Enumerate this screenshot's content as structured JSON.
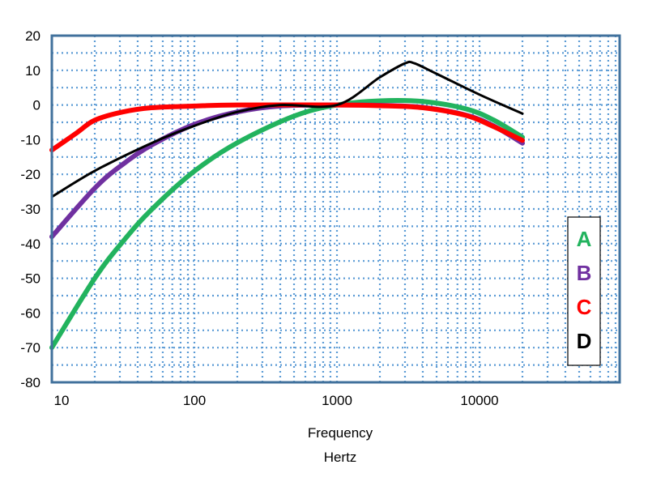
{
  "chart_data": {
    "type": "line",
    "xscale": "log",
    "xlim": [
      10,
      90000
    ],
    "ylim": [
      -80,
      20
    ],
    "xlabel_line1": "Frequency",
    "xlabel_line2": "Hertz",
    "x_ticks": [
      {
        "value": 10,
        "label": "10"
      },
      {
        "value": 100,
        "label": "100"
      },
      {
        "value": 1000,
        "label": "1000"
      },
      {
        "value": 10000,
        "label": "10000"
      }
    ],
    "y_ticks": [
      {
        "value": 20,
        "label": "20"
      },
      {
        "value": 10,
        "label": "10"
      },
      {
        "value": 0,
        "label": "0"
      },
      {
        "value": -10,
        "label": "-10"
      },
      {
        "value": -20,
        "label": "-20"
      },
      {
        "value": -30,
        "label": "-30"
      },
      {
        "value": -40,
        "label": "-40"
      },
      {
        "value": -50,
        "label": "-50"
      },
      {
        "value": -60,
        "label": "-60"
      },
      {
        "value": -70,
        "label": "-70"
      },
      {
        "value": -80,
        "label": "-80"
      }
    ],
    "grid": true,
    "legend_position": "right-middle",
    "series": [
      {
        "name": "A",
        "color": "#22b35e",
        "width": "thick",
        "points": [
          [
            10,
            -70
          ],
          [
            20,
            -50
          ],
          [
            31.5,
            -39.4
          ],
          [
            50,
            -30.2
          ],
          [
            100,
            -19.1
          ],
          [
            200,
            -10.9
          ],
          [
            500,
            -3.2
          ],
          [
            1000,
            0
          ],
          [
            2000,
            1.2
          ],
          [
            4000,
            1.0
          ],
          [
            8000,
            -1.1
          ],
          [
            12500,
            -4.3
          ],
          [
            20000,
            -9.3
          ]
        ]
      },
      {
        "name": "B",
        "color": "#7030a0",
        "width": "thick",
        "points": [
          [
            10,
            -38
          ],
          [
            20,
            -24
          ],
          [
            31.5,
            -17.1
          ],
          [
            50,
            -11.6
          ],
          [
            100,
            -5.6
          ],
          [
            200,
            -2.0
          ],
          [
            400,
            -0.3
          ],
          [
            1000,
            0
          ],
          [
            2000,
            -0.1
          ],
          [
            4000,
            -0.7
          ],
          [
            8000,
            -2.9
          ],
          [
            12500,
            -6
          ],
          [
            20000,
            -11
          ]
        ]
      },
      {
        "name": "C",
        "color": "#ff0000",
        "width": "thick",
        "points": [
          [
            10,
            -13
          ],
          [
            15,
            -8
          ],
          [
            20,
            -4.4
          ],
          [
            31.5,
            -2
          ],
          [
            50,
            -0.8
          ],
          [
            100,
            -0.3
          ],
          [
            200,
            0
          ],
          [
            1000,
            0
          ],
          [
            2000,
            -0.2
          ],
          [
            4000,
            -0.8
          ],
          [
            8000,
            -3
          ],
          [
            12500,
            -6.2
          ],
          [
            20000,
            -10.2
          ]
        ]
      },
      {
        "name": "D",
        "color": "#000000",
        "width": "thin",
        "points": [
          [
            10,
            -26.5
          ],
          [
            20,
            -19
          ],
          [
            50,
            -11
          ],
          [
            100,
            -6
          ],
          [
            200,
            -2
          ],
          [
            400,
            0
          ],
          [
            1000,
            0
          ],
          [
            2000,
            8
          ],
          [
            3000,
            12
          ],
          [
            3500,
            12
          ],
          [
            5000,
            9
          ],
          [
            10000,
            3
          ],
          [
            20000,
            -2.5
          ]
        ]
      }
    ]
  }
}
